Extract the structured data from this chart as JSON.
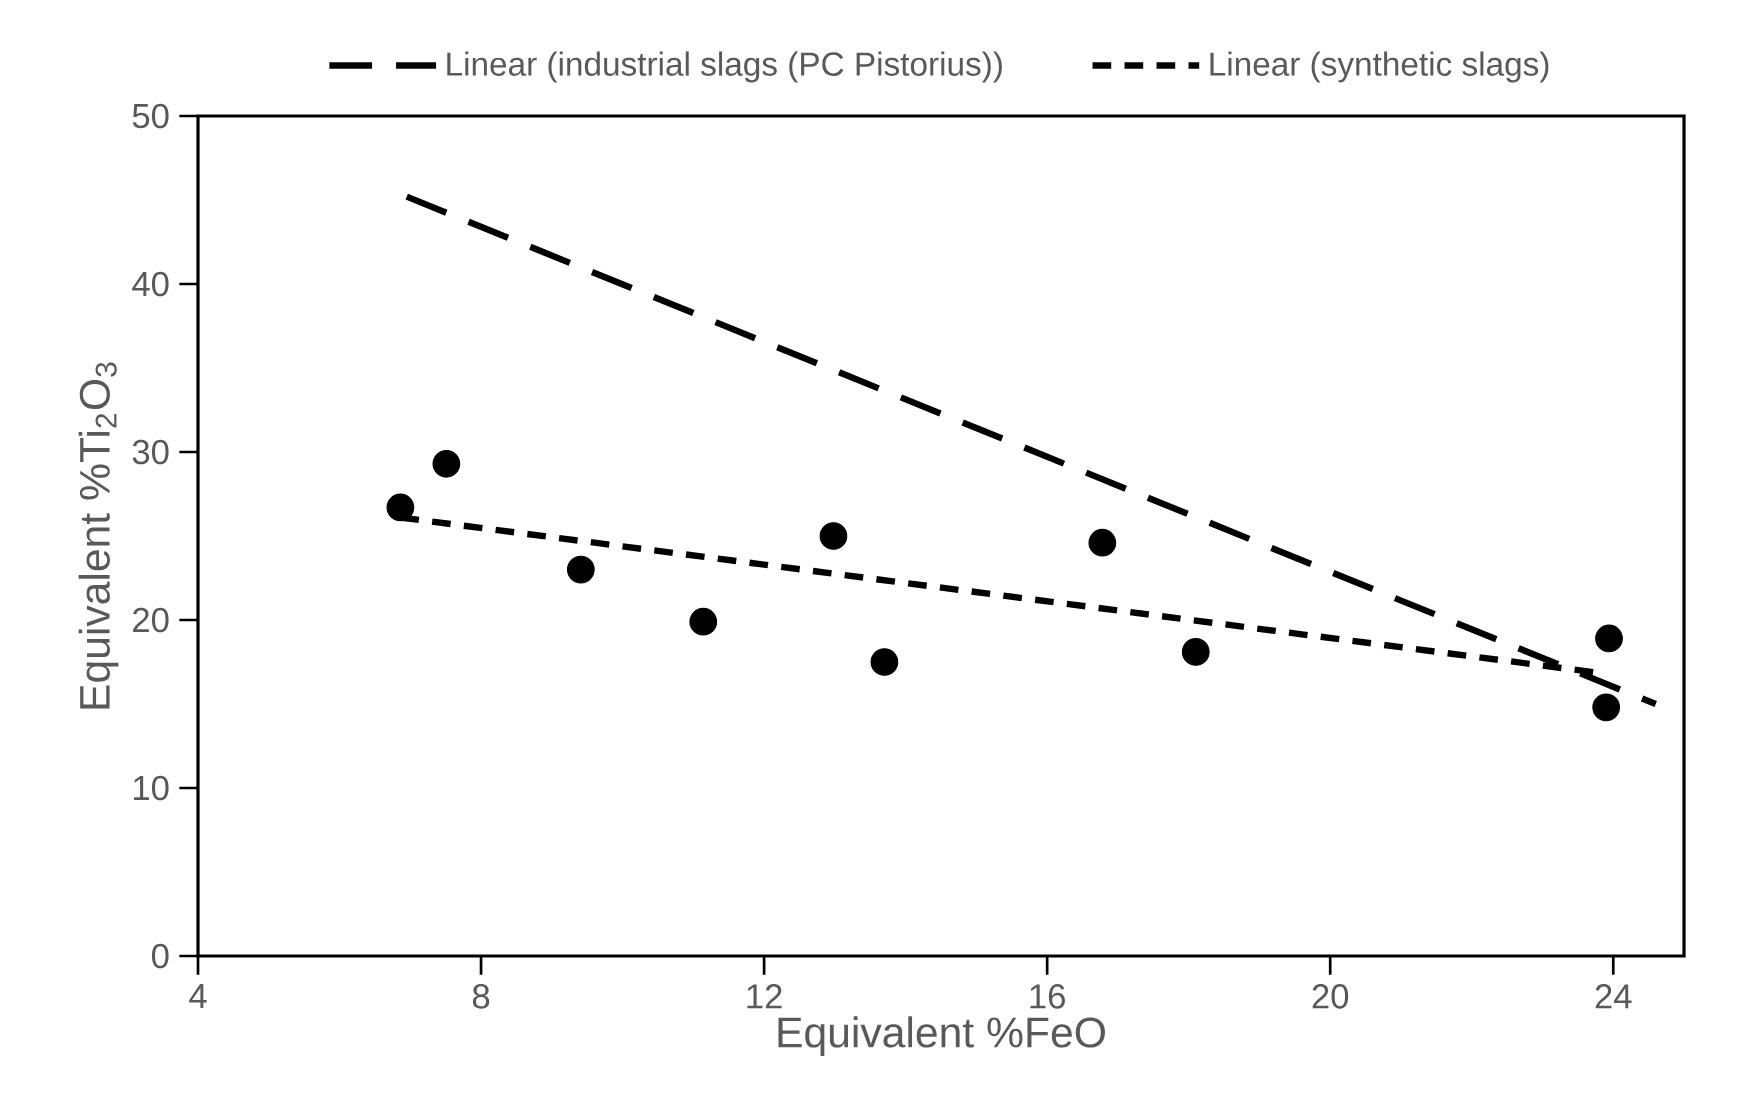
{
  "chart_data": {
    "type": "scatter",
    "xlabel": "Equivalent %FeO",
    "ylabel": "Equivalent %Ti$_{2}$O$_{3}$",
    "xlim": [
      4,
      25
    ],
    "ylim": [
      0,
      50
    ],
    "xticks": [
      4,
      8,
      12,
      16,
      20,
      24
    ],
    "yticks": [
      0,
      10,
      20,
      30,
      40,
      50
    ],
    "grid": false,
    "legend": "top",
    "series": [
      {
        "color": "#000000",
        "marker": "circle",
        "x": [
          6.86,
          7.51,
          9.41,
          11.14,
          12.98,
          13.7,
          16.78,
          18.1,
          23.94,
          23.9
        ],
        "values": [
          26.7,
          29.3,
          23.0,
          19.9,
          25.0,
          17.5,
          24.6,
          18.1,
          18.9,
          14.8
        ]
      },
      {
        "type": "line",
        "name": "Linear (industrial slags (PC Pistorius))",
        "color": "#000000",
        "line_style": "dashed",
        "marker": "none",
        "x": [
          6.95,
          24.6
        ],
        "values": [
          45.2,
          15.0
        ]
      },
      {
        "type": "line",
        "name": "Linear (synthetic slags)",
        "color": "#000000",
        "line_style": "dashed",
        "marker": "none",
        "x": [
          6.86,
          23.9
        ],
        "values": [
          26.1,
          16.8
        ]
      }
    ]
  }
}
